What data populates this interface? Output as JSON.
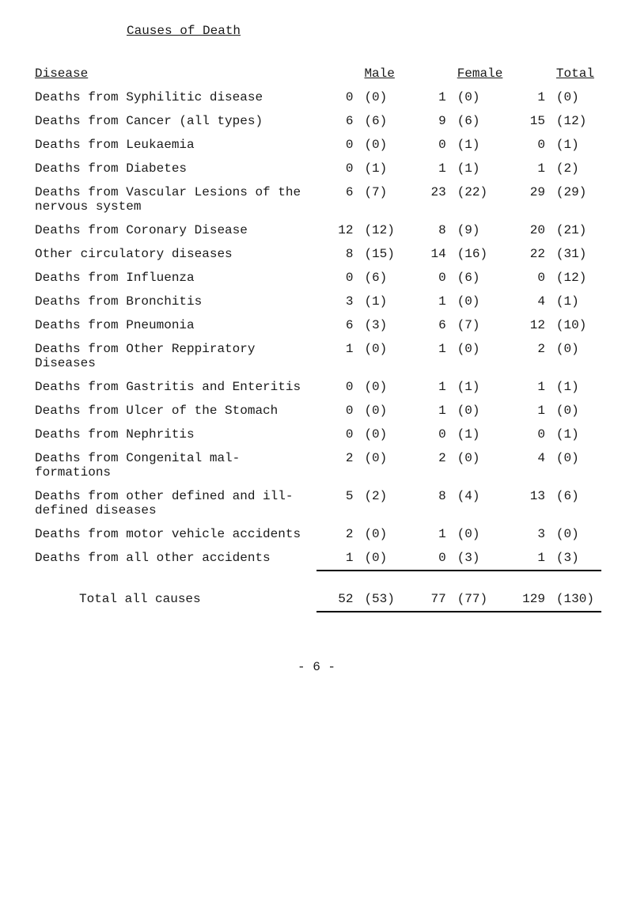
{
  "title": "Causes of Death",
  "headers": {
    "disease": "Disease",
    "male": "Male",
    "female": "Female",
    "total": "Total"
  },
  "rows": [
    {
      "disease": "Deaths from Syphilitic disease",
      "m": 0,
      "mp": "(0)",
      "f": 1,
      "fp": "(0)",
      "t": 1,
      "tp": "(0)"
    },
    {
      "disease": "Deaths from Cancer (all types)",
      "m": 6,
      "mp": "(6)",
      "f": 9,
      "fp": "(6)",
      "t": 15,
      "tp": "(12)"
    },
    {
      "disease": "Deaths from Leukaemia",
      "m": 0,
      "mp": "(0)",
      "f": 0,
      "fp": "(1)",
      "t": 0,
      "tp": "(1)"
    },
    {
      "disease": "Deaths from Diabetes",
      "m": 0,
      "mp": "(1)",
      "f": 1,
      "fp": "(1)",
      "t": 1,
      "tp": "(2)"
    },
    {
      "disease": "Deaths from Vascular Lesions of the nervous system",
      "m": 6,
      "mp": "(7)",
      "f": 23,
      "fp": "(22)",
      "t": 29,
      "tp": "(29)"
    },
    {
      "disease": "Deaths from Coronary Disease",
      "m": 12,
      "mp": "(12)",
      "f": 8,
      "fp": "(9)",
      "t": 20,
      "tp": "(21)"
    },
    {
      "disease": "Other circulatory diseases",
      "m": 8,
      "mp": "(15)",
      "f": 14,
      "fp": "(16)",
      "t": 22,
      "tp": "(31)"
    },
    {
      "disease": "Deaths from Influenza",
      "m": 0,
      "mp": "(6)",
      "f": 0,
      "fp": "(6)",
      "t": 0,
      "tp": "(12)"
    },
    {
      "disease": "Deaths from Bronchitis",
      "m": 3,
      "mp": "(1)",
      "f": 1,
      "fp": "(0)",
      "t": 4,
      "tp": "(1)"
    },
    {
      "disease": "Deaths from Pneumonia",
      "m": 6,
      "mp": "(3)",
      "f": 6,
      "fp": "(7)",
      "t": 12,
      "tp": "(10)"
    },
    {
      "disease": "Deaths from Other Reppiratory Diseases",
      "m": 1,
      "mp": "(0)",
      "f": 1,
      "fp": "(0)",
      "t": 2,
      "tp": "(0)"
    },
    {
      "disease": "Deaths from Gastritis and Enteritis",
      "m": 0,
      "mp": "(0)",
      "f": 1,
      "fp": "(1)",
      "t": 1,
      "tp": "(1)"
    },
    {
      "disease": "Deaths from Ulcer of the Stomach",
      "m": 0,
      "mp": "(0)",
      "f": 1,
      "fp": "(0)",
      "t": 1,
      "tp": "(0)"
    },
    {
      "disease": "Deaths from Nephritis",
      "m": 0,
      "mp": "(0)",
      "f": 0,
      "fp": "(1)",
      "t": 0,
      "tp": "(1)"
    },
    {
      "disease": "Deaths from Congenital mal- formations",
      "m": 2,
      "mp": "(0)",
      "f": 2,
      "fp": "(0)",
      "t": 4,
      "tp": "(0)"
    },
    {
      "disease": "Deaths from other defined and ill-defined diseases",
      "m": 5,
      "mp": "(2)",
      "f": 8,
      "fp": "(4)",
      "t": 13,
      "tp": "(6)"
    },
    {
      "disease": "Deaths from motor vehicle accidents",
      "m": 2,
      "mp": "(0)",
      "f": 1,
      "fp": "(0)",
      "t": 3,
      "tp": "(0)"
    },
    {
      "disease": "Deaths from all other accidents",
      "m": 1,
      "mp": "(0)",
      "f": 0,
      "fp": "(3)",
      "t": 1,
      "tp": "(3)"
    }
  ],
  "total": {
    "label": "Total all causes",
    "m": 52,
    "mp": "(53)",
    "f": 77,
    "fp": "(77)",
    "t": 129,
    "tp": "(130)"
  },
  "pagenum": "- 6 -"
}
